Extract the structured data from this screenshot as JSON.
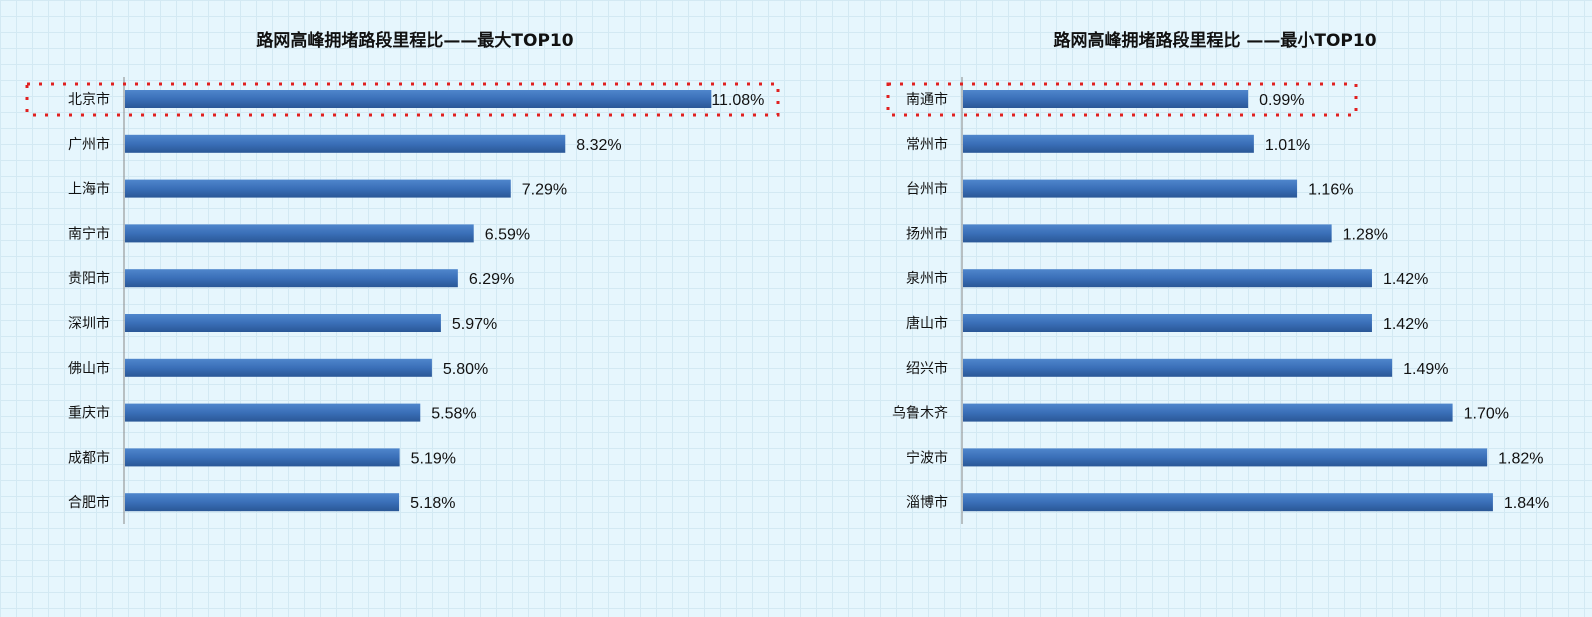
{
  "chart_data": [
    {
      "type": "bar",
      "orientation": "horizontal",
      "title": "路网高峰拥堵路段里程比——最大TOP10",
      "categories": [
        "北京市",
        "广州市",
        "上海市",
        "南宁市",
        "贵阳市",
        "深圳市",
        "佛山市",
        "重庆市",
        "成都市",
        "合肥市"
      ],
      "values": [
        11.08,
        8.32,
        7.29,
        6.59,
        6.29,
        5.97,
        5.8,
        5.58,
        5.19,
        5.18
      ],
      "labels": [
        "11.08%",
        "8.32%",
        "7.29%",
        "6.59%",
        "6.29%",
        "5.97%",
        "5.80%",
        "5.58%",
        "5.19%",
        "5.18%"
      ],
      "xlim": [
        0,
        12
      ],
      "grid": false,
      "highlighted": "北京市",
      "bar_color": "#3a6fb8",
      "highlight_color": "#e02020"
    },
    {
      "type": "bar",
      "orientation": "horizontal",
      "title": "路网高峰拥堵路段里程比 ——最小TOP10",
      "categories": [
        "南通市",
        "常州市",
        "台州市",
        "扬州市",
        "泉州市",
        "唐山市",
        "绍兴市",
        "乌鲁木齐",
        "宁波市",
        "淄博市"
      ],
      "values": [
        0.99,
        1.01,
        1.16,
        1.28,
        1.42,
        1.42,
        1.49,
        1.7,
        1.82,
        1.84
      ],
      "labels": [
        "0.99%",
        "1.01%",
        "1.16%",
        "1.28%",
        "1.42%",
        "1.42%",
        "1.49%",
        "1.70%",
        "1.82%",
        "1.84%"
      ],
      "xlim": [
        0,
        2
      ],
      "grid": false,
      "highlighted": "南通市",
      "bar_color": "#3a6fb8",
      "highlight_color": "#e02020"
    }
  ]
}
